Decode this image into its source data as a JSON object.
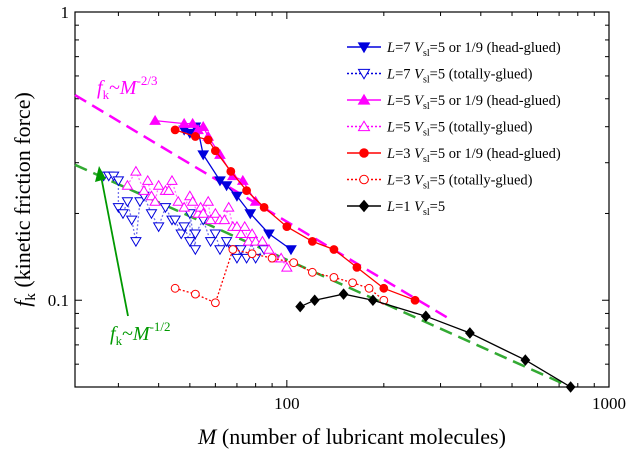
{
  "chart_data": {
    "type": "scatter",
    "xscale": "log",
    "yscale": "log",
    "xlim": [
      22,
      1000
    ],
    "ylim": [
      0.05,
      1
    ],
    "xticks": [
      {
        "value": 100,
        "label": "100"
      },
      {
        "value": 1000,
        "label": "1000"
      }
    ],
    "yticks": [
      {
        "value": 0.1,
        "label": "0.1"
      },
      {
        "value": 1,
        "label": "1"
      }
    ],
    "xlabel": {
      "sym": "M",
      "text": " (number of lubricant molecules)"
    },
    "ylabel": {
      "sym": "f",
      "sub": "k",
      "text": " (kinetic  friction  force)"
    },
    "annotations": [
      {
        "id": "magenta-power-law",
        "f": "f",
        "sub": "k",
        "tilde": "~",
        "M": "M",
        "exp": "-2/3",
        "color": "#ff00ff"
      },
      {
        "id": "green-power-law",
        "f": "f",
        "sub": "k",
        "tilde": "~",
        "M": "M",
        "exp": "-1/2",
        "color": "#009900"
      }
    ],
    "fit_lines": [
      {
        "id": "magenta-fit",
        "color": "#ff00ff",
        "x": [
          22,
          315
        ],
        "y": [
          0.515,
          0.087
        ]
      },
      {
        "id": "green-fit",
        "color": "#33aa33",
        "x": [
          22,
          760
        ],
        "y": [
          0.295,
          0.05
        ]
      }
    ],
    "series": [
      {
        "id": "L7-head",
        "L": "7",
        "V": "=5 or 1/9 (head-glued)",
        "color": "#0000dd",
        "marker": "tri-down-filled",
        "line": "solid",
        "x": [
          48,
          50,
          52,
          53,
          55,
          62,
          65,
          70,
          77,
          88,
          103
        ],
        "y": [
          0.39,
          0.38,
          0.4,
          0.39,
          0.32,
          0.26,
          0.25,
          0.23,
          0.2,
          0.17,
          0.15
        ]
      },
      {
        "id": "L7-total",
        "L": "7",
        "V": "=5 (totally-glued)",
        "color": "#0000dd",
        "marker": "tri-down-open",
        "line": "dotted",
        "x": [
          27,
          28,
          29,
          30,
          30,
          31,
          32,
          33,
          34,
          35,
          36,
          38,
          40,
          42,
          44,
          45,
          47,
          48,
          50,
          50,
          52,
          52,
          55,
          58,
          60,
          62,
          65,
          68,
          70,
          72,
          75,
          78,
          80,
          85
        ],
        "y": [
          0.27,
          0.27,
          0.27,
          0.26,
          0.21,
          0.2,
          0.22,
          0.19,
          0.16,
          0.22,
          0.23,
          0.2,
          0.18,
          0.21,
          0.19,
          0.19,
          0.17,
          0.18,
          0.16,
          0.2,
          0.15,
          0.17,
          0.19,
          0.16,
          0.17,
          0.15,
          0.16,
          0.15,
          0.14,
          0.15,
          0.14,
          0.16,
          0.14,
          0.15
        ]
      },
      {
        "id": "L5-head",
        "L": "5",
        "V": "=5 or 1/9 (head-glued)",
        "color": "#ff00ff",
        "marker": "tri-up-filled",
        "line": "solid",
        "x": [
          39,
          48,
          51,
          53,
          55,
          57,
          62,
          68,
          73,
          80
        ],
        "y": [
          0.42,
          0.41,
          0.41,
          0.39,
          0.4,
          0.37,
          0.32,
          0.27,
          0.26,
          0.22
        ]
      },
      {
        "id": "L5-total",
        "L": "5",
        "V": "=5 (totally-glued)",
        "color": "#ff00ff",
        "marker": "tri-up-open",
        "line": "dotted",
        "x": [
          32,
          34,
          36,
          37,
          38,
          39,
          40,
          42,
          43,
          44,
          46,
          48,
          50,
          51,
          53,
          54,
          55,
          57,
          58,
          60,
          62,
          64,
          66,
          68,
          70,
          72,
          74,
          76,
          78,
          80,
          84,
          88,
          92,
          96,
          100
        ],
        "y": [
          0.25,
          0.28,
          0.24,
          0.26,
          0.23,
          0.22,
          0.25,
          0.24,
          0.24,
          0.26,
          0.22,
          0.21,
          0.23,
          0.22,
          0.2,
          0.21,
          0.2,
          0.22,
          0.19,
          0.2,
          0.19,
          0.19,
          0.21,
          0.18,
          0.18,
          0.17,
          0.18,
          0.16,
          0.17,
          0.16,
          0.16,
          0.15,
          0.14,
          0.14,
          0.13
        ]
      },
      {
        "id": "L3-head",
        "L": "3",
        "V": "=5 or 1/9 (head-glued)",
        "color": "#ff0000",
        "marker": "circle-filled",
        "line": "solid",
        "x": [
          45,
          52,
          57,
          60,
          67,
          75,
          85,
          100,
          120,
          140,
          165,
          200,
          250
        ],
        "y": [
          0.39,
          0.37,
          0.36,
          0.33,
          0.28,
          0.24,
          0.21,
          0.18,
          0.16,
          0.15,
          0.13,
          0.11,
          0.1
        ]
      },
      {
        "id": "L3-total",
        "L": "3",
        "V": "=5 (totally-glued)",
        "color": "#ff0000",
        "marker": "circle-open",
        "line": "dotted",
        "x": [
          45,
          52,
          60,
          68,
          78,
          90,
          105,
          120,
          140,
          160,
          180,
          200
        ],
        "y": [
          0.11,
          0.105,
          0.098,
          0.15,
          0.145,
          0.14,
          0.135,
          0.125,
          0.12,
          0.115,
          0.11,
          0.1
        ]
      },
      {
        "id": "L1",
        "L": "1",
        "V": "=5",
        "color": "#000000",
        "marker": "diamond-filled",
        "line": "solid",
        "x": [
          110,
          122,
          150,
          185,
          270,
          370,
          550,
          760
        ],
        "y": [
          0.095,
          0.1,
          0.105,
          0.1,
          0.088,
          0.077,
          0.062,
          0.05
        ]
      }
    ],
    "legend": {
      "position": "top-right"
    }
  }
}
